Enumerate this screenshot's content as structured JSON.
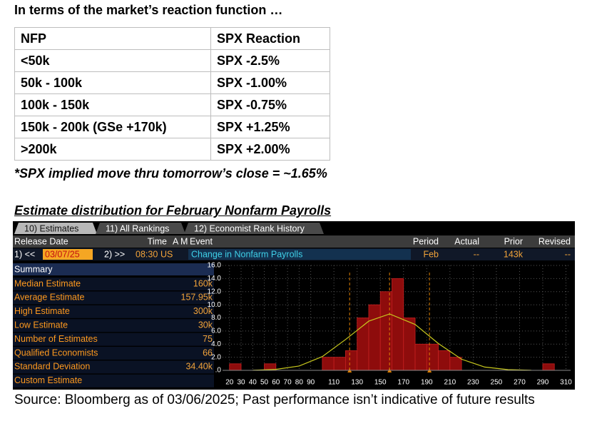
{
  "heading": "In terms of the market’s reaction function …",
  "table": {
    "header": [
      "NFP",
      "SPX Reaction"
    ],
    "rows": [
      [
        "<50k",
        "SPX -2.5%"
      ],
      [
        "50k - 100k",
        "SPX -1.00%"
      ],
      [
        "100k - 150k",
        "SPX -0.75%"
      ],
      [
        "150k - 200k (GSe +170k)",
        "SPX +1.25%"
      ],
      [
        ">200k",
        "SPX +2.00%"
      ]
    ]
  },
  "note": "*SPX implied move thru tomorrow’s close = ~1.65%",
  "section_title": "Estimate distribution for February Nonfarm Payrolls",
  "terminal": {
    "tabs": [
      "10) Estimates",
      "11) All Rankings",
      "12) Economist Rank History"
    ],
    "header": [
      "Release Date",
      "Time",
      "A",
      "M",
      "Event",
      "Period",
      "Actual",
      "Prior",
      "Revised"
    ],
    "row": {
      "prev": "1) <<",
      "date": "03/07/25",
      "next": "2) >>",
      "time": "08:30",
      "country": "US",
      "event": "Change in Nonfarm Payrolls",
      "period": "Feb",
      "actual": "--",
      "prior": "143k",
      "revised": "--"
    },
    "summary_title": "Summary",
    "summary": [
      [
        "Median Estimate",
        "160k"
      ],
      [
        "Average Estimate",
        "157.95k"
      ],
      [
        "High Estimate",
        "300k"
      ],
      [
        "Low Estimate",
        "30k"
      ],
      [
        "Number of Estimates",
        "75"
      ],
      [
        "Qualified Economists",
        "66"
      ],
      [
        "Standard Deviation",
        "34.40k"
      ],
      [
        "Custom Estimate",
        null
      ]
    ]
  },
  "chart_data": {
    "type": "histogram",
    "bins": [
      20,
      30,
      40,
      50,
      60,
      70,
      80,
      90,
      100,
      110,
      120,
      130,
      140,
      150,
      160,
      170,
      180,
      190,
      200,
      210,
      220,
      230,
      240,
      250,
      260,
      270,
      280,
      290,
      300
    ],
    "counts": [
      1,
      0,
      0,
      1,
      0,
      0,
      0,
      0,
      2,
      2,
      3,
      8,
      10,
      12,
      14,
      8,
      4,
      4,
      3,
      2,
      0,
      0,
      0,
      0,
      0,
      0,
      0,
      1
    ],
    "color": "#8e0c0c",
    "fit": {
      "color": "#c8c81e",
      "x": [
        40,
        60,
        80,
        100,
        120,
        140,
        158,
        180,
        200,
        220,
        240,
        260,
        280
      ],
      "values": [
        0.02,
        0.15,
        0.66,
        2.1,
        4.7,
        7.5,
        8.6,
        7.0,
        4.1,
        1.7,
        0.5,
        0.11,
        0.02
      ]
    },
    "reference_lines": {
      "color": "#e08000",
      "values": [
        123.55,
        157.95,
        192.35
      ]
    },
    "xlim": [
      14,
      314
    ],
    "ylim": [
      0,
      16
    ],
    "xticks": [
      20,
      30,
      40,
      50,
      60,
      70,
      80,
      90,
      110,
      130,
      150,
      170,
      190,
      210,
      230,
      250,
      270,
      290,
      310
    ],
    "yticks": [
      {
        "value": 0,
        "label": ".0"
      },
      {
        "value": 2,
        "label": "2.0"
      },
      {
        "value": 4,
        "label": "4.0"
      },
      {
        "value": 6,
        "label": "6.0"
      },
      {
        "value": 8,
        "label": "8.0"
      },
      {
        "value": 10,
        "label": "10.0"
      },
      {
        "value": 12,
        "label": "12.0"
      },
      {
        "value": 14,
        "label": "14.0"
      },
      {
        "value": 16,
        "label": "16.0"
      }
    ],
    "grid": true
  },
  "source": "Source: Bloomberg as of 03/06/2025; Past performance isn’t indicative of future results"
}
